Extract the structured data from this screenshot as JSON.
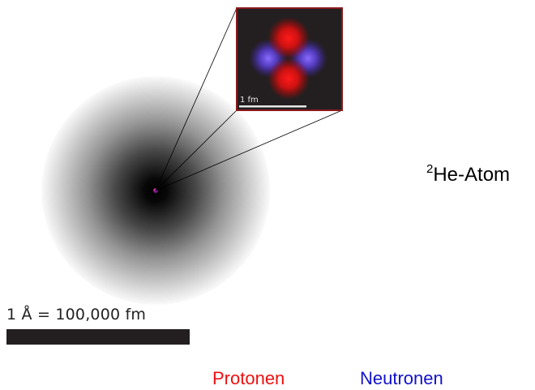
{
  "title": {
    "superscript": "2",
    "text": "He-Atom"
  },
  "scale_atom": {
    "label": "1 Å = 100,000 fm"
  },
  "scale_nucleus": {
    "label": "1 fm"
  },
  "legend": {
    "protons_label": "Protonen",
    "neutrons_label": "Neutronen"
  },
  "colors": {
    "proton": "#ee1111",
    "neutron": "#1111cc",
    "nucleus_background": "#231f20",
    "inset_border": "#8b1a1a",
    "electron_cloud": "#000000"
  },
  "nucleus": {
    "protons": 2,
    "neutrons": 2
  }
}
